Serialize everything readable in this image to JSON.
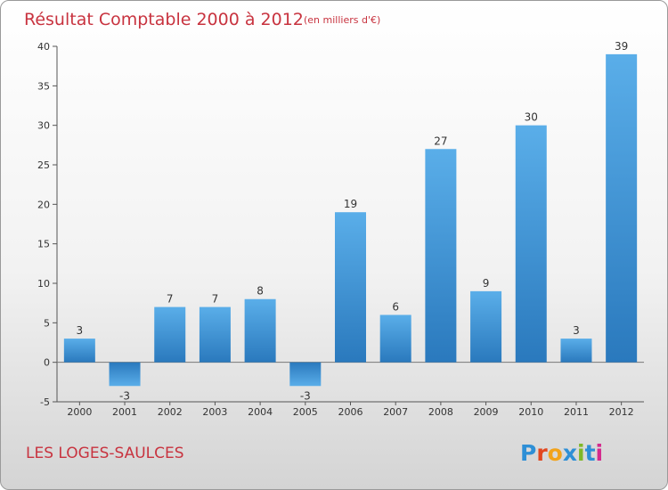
{
  "chart_data": {
    "type": "bar",
    "title": "Résultat Comptable 2000 à 2012",
    "subtitle": "(en milliers d'€)",
    "categories": [
      "2000",
      "2001",
      "2002",
      "2003",
      "2004",
      "2005",
      "2006",
      "2007",
      "2008",
      "2009",
      "2010",
      "2011",
      "2012"
    ],
    "values": [
      3,
      -3,
      7,
      7,
      8,
      -3,
      19,
      6,
      27,
      9,
      30,
      3,
      39
    ],
    "ylim": [
      -5,
      40
    ],
    "yticks": [
      -5,
      0,
      5,
      10,
      15,
      20,
      25,
      30,
      35,
      40
    ],
    "grid": false,
    "xlabel": "",
    "ylabel": ""
  },
  "commune": "LES LOGES-SAULCES",
  "brand": {
    "letters": [
      "P",
      "r",
      "o",
      "x",
      "i",
      "t",
      "i"
    ],
    "colors": [
      "#2e8fd6",
      "#e2471f",
      "#f2a31b",
      "#2e8fd6",
      "#7fb827",
      "#2e8fd6",
      "#d42a8d"
    ]
  },
  "colors": {
    "bar_top": "#5aaee9",
    "bar_bottom": "#2a79bd",
    "accent": "#c8333f"
  }
}
